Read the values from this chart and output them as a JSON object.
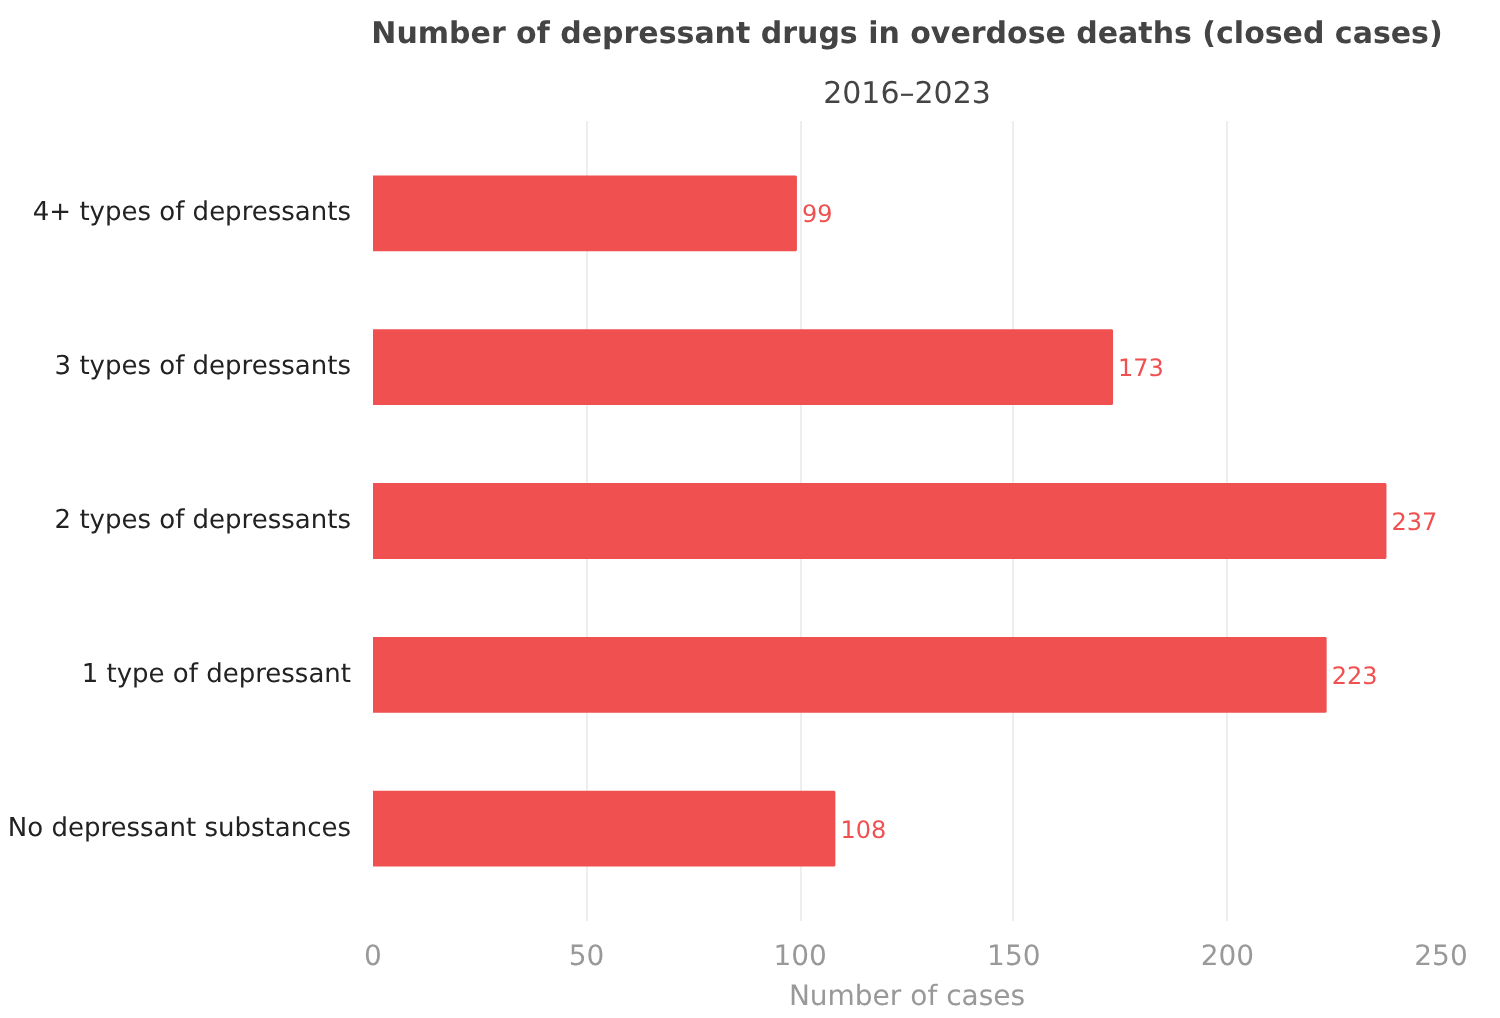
{
  "chart_data": {
    "type": "bar",
    "orientation": "horizontal",
    "title": "Number of depressant drugs in overdose deaths (closed cases)",
    "subtitle": "2016–2023",
    "xlabel": "Number of cases",
    "categories": [
      "4+ types of depressants",
      "3 types of depressants",
      "2 types of depressants",
      "1 type of depressant",
      "No depressant substances"
    ],
    "values": [
      99,
      173,
      237,
      223,
      108
    ],
    "color": "#f05050",
    "xlim": [
      0,
      250
    ],
    "xticks": [
      0,
      50,
      100,
      150,
      200,
      250
    ],
    "grid": "x",
    "data_labels": true
  }
}
